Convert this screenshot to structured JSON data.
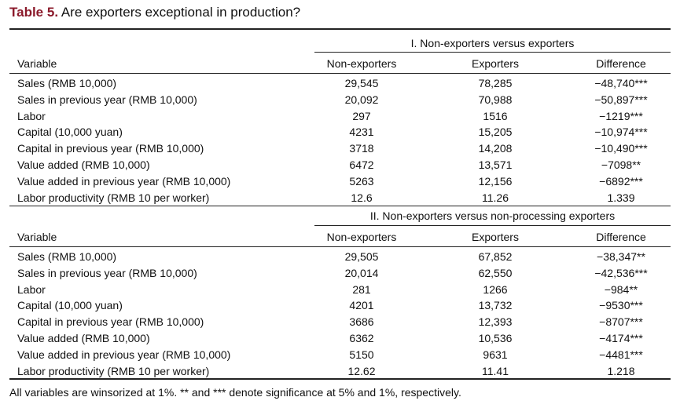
{
  "title": {
    "label": "Table 5.",
    "text": "Are exporters exceptional in production?"
  },
  "panels": [
    {
      "heading": "I. Non-exporters versus exporters",
      "columns": [
        "Variable",
        "Non-exporters",
        "Exporters",
        "Difference"
      ],
      "rows": [
        [
          "Sales (RMB 10,000)",
          "29,545",
          "78,285",
          "−48,740***"
        ],
        [
          "Sales in previous year (RMB 10,000)",
          "20,092",
          "70,988",
          "−50,897***"
        ],
        [
          "Labor",
          "297",
          "1516",
          "−1219***"
        ],
        [
          "Capital (10,000 yuan)",
          "4231",
          "15,205",
          "−10,974***"
        ],
        [
          "Capital in previous year (RMB 10,000)",
          "3718",
          "14,208",
          "−10,490***"
        ],
        [
          "Value added (RMB 10,000)",
          "6472",
          "13,571",
          "−7098**"
        ],
        [
          "Value added in previous year (RMB 10,000)",
          "5263",
          "12,156",
          "−6892***"
        ],
        [
          "Labor productivity (RMB 10 per worker)",
          "12.6",
          "11.26",
          "1.339"
        ]
      ]
    },
    {
      "heading": "II. Non-exporters versus non-processing exporters",
      "columns": [
        "Variable",
        "Non-exporters",
        "Exporters",
        "Difference"
      ],
      "rows": [
        [
          "Sales (RMB 10,000)",
          "29,505",
          "67,852",
          "−38,347**"
        ],
        [
          "Sales in previous year (RMB 10,000)",
          "20,014",
          "62,550",
          "−42,536***"
        ],
        [
          "Labor",
          "281",
          "1266",
          "−984**"
        ],
        [
          "Capital (10,000 yuan)",
          "4201",
          "13,732",
          "−9530***"
        ],
        [
          "Capital in previous year (RMB 10,000)",
          "3686",
          "12,393",
          "−8707***"
        ],
        [
          "Value added (RMB 10,000)",
          "6362",
          "10,536",
          "−4174***"
        ],
        [
          "Value added in previous year (RMB 10,000)",
          "5150",
          "9631",
          "−4481***"
        ],
        [
          "Labor productivity (RMB 10 per worker)",
          "12.62",
          "11.41",
          "1.218"
        ]
      ]
    }
  ],
  "footnote": "All variables are winsorized at 1%. ** and *** denote significance at 5% and 1%, respectively.",
  "colors": {
    "title_label": "#8b1a2b",
    "text": "#111111",
    "rule": "#222222"
  }
}
